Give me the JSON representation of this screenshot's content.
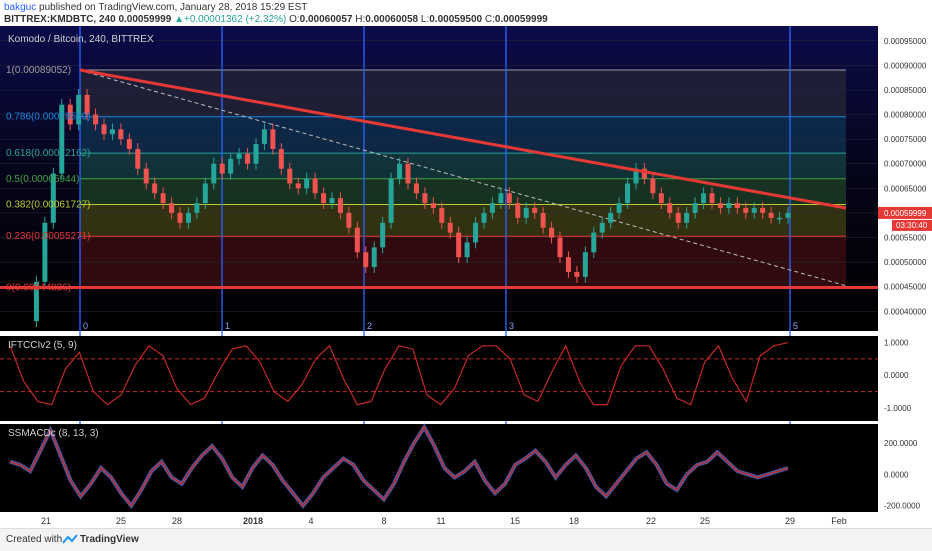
{
  "header": {
    "user": "bakguc",
    "published": "published on TradingView.com, January 28, 2018 15:29 EST",
    "symbol": "BITTREX:KMDBTC, 240",
    "last": "0.00059999",
    "change": "+0.00001362 (+2.32%)",
    "o_label": "O:",
    "o": "0.00060057",
    "h_label": "H:",
    "h": "0.00060058",
    "l_label": "L:",
    "l": "0.00059500",
    "c_label": "C:",
    "c": "0.00059999"
  },
  "footer": {
    "created": "Created with",
    "brand": "TradingView"
  },
  "colors": {
    "up": "#26a69a",
    "down": "#ef5350",
    "trend": "#e53935",
    "vline": "#2962ff",
    "ind": "#c62828",
    "macd_fill": "#5c6bc0",
    "panel_bg": "#000000"
  },
  "chart_data": [
    {
      "type": "candlestick",
      "title": "Komodo / Bitcoin, 240, BITTREX",
      "ylim": [
        0.00036,
        0.00098
      ],
      "y_ticks": [
        "0.00095000",
        "0.00090000",
        "0.00085000",
        "0.00080000",
        "0.00075000",
        "0.00070000",
        "0.00065000",
        "0.00060000",
        "0.00055000",
        "0.00050000",
        "0.00045000",
        "0.00040000"
      ],
      "last_price_label": "0.00059999",
      "countdown_label": "03:30:40",
      "fib_levels": [
        {
          "label": "1(0.00089052)",
          "value": 0.00089052,
          "color": "#9e9e9e"
        },
        {
          "label": "0.786(0.00079559)",
          "value": 0.00079559,
          "color": "#1e88e5"
        },
        {
          "label": "0.618(0.00072162)",
          "value": 0.00072162,
          "color": "#26a69a"
        },
        {
          "label": "0.5(0.00066944)",
          "value": 0.00066944,
          "color": "#43a047"
        },
        {
          "label": "0.382(0.00061727)",
          "value": 0.00061727,
          "color": "#c0ca33"
        },
        {
          "label": "0.236(0.00055271)",
          "value": 0.00055271,
          "color": "#e53935"
        },
        {
          "label": "0(0.00044836)",
          "value": 0.00044836,
          "color": "#e53935"
        }
      ],
      "vertical_markers": [
        "0",
        "1",
        "2",
        "3",
        "5"
      ],
      "trendline_from": 0.00089052,
      "trendline_to": 0.00061,
      "dashed_line_from": 0.00089,
      "dashed_line_to": 0.000452,
      "support": 0.00044836,
      "closes": [
        0.00038,
        0.00046,
        0.00058,
        0.00068,
        0.00082,
        0.00078,
        0.00084,
        0.0008,
        0.00078,
        0.00076,
        0.00077,
        0.00075,
        0.00073,
        0.00069,
        0.00066,
        0.00064,
        0.00062,
        0.0006,
        0.00058,
        0.0006,
        0.00062,
        0.00066,
        0.0007,
        0.00068,
        0.00071,
        0.00072,
        0.0007,
        0.00074,
        0.00077,
        0.00073,
        0.00069,
        0.00066,
        0.00065,
        0.00067,
        0.00064,
        0.00062,
        0.00063,
        0.0006,
        0.00057,
        0.00052,
        0.00049,
        0.00053,
        0.00058,
        0.00067,
        0.0007,
        0.00066,
        0.00064,
        0.00062,
        0.00061,
        0.00058,
        0.00056,
        0.00051,
        0.00054,
        0.00058,
        0.0006,
        0.00062,
        0.00064,
        0.00062,
        0.00059,
        0.00061,
        0.0006,
        0.00057,
        0.00055,
        0.00051,
        0.00048,
        0.00047,
        0.00052,
        0.00056,
        0.00058,
        0.0006,
        0.00062,
        0.00066,
        0.00069,
        0.00067,
        0.00064,
        0.00062,
        0.0006,
        0.00058,
        0.0006,
        0.00062,
        0.00064,
        0.00062,
        0.00061,
        0.00062,
        0.00061,
        0.0006,
        0.00061,
        0.0006,
        0.00059,
        0.00059,
        0.0006
      ],
      "x_ticks": [
        "21",
        "25",
        "28",
        "2018",
        "4",
        "8",
        "11",
        "15",
        "18",
        "22",
        "25",
        "29",
        "Feb"
      ]
    },
    {
      "type": "line",
      "title": "IFTCCIv2 (5, 9)",
      "ylim": [
        -1.4,
        1.2
      ],
      "y_ticks": [
        "1.0000",
        "0.0000",
        "-1.0000"
      ],
      "levels": [
        0.5,
        -0.5
      ],
      "values": [
        0.9,
        -0.2,
        -0.8,
        -0.9,
        0.2,
        0.7,
        -0.5,
        -0.9,
        -0.6,
        0.3,
        0.9,
        0.6,
        -0.4,
        -0.9,
        -0.7,
        0.1,
        0.8,
        0.9,
        0.4,
        -0.5,
        -0.8,
        -0.3,
        0.5,
        0.9,
        -0.1,
        -0.9,
        -0.8,
        0.2,
        0.9,
        0.8,
        -0.6,
        -0.9,
        -0.4,
        0.6,
        0.9,
        0.9,
        0.5,
        -0.6,
        -0.8,
        0.1,
        0.9,
        -0.2,
        -0.9,
        -0.9,
        0.3,
        0.9,
        0.9,
        0.2,
        -0.7,
        -0.9,
        0.4,
        0.9,
        -0.1,
        -0.8,
        0.6,
        0.9,
        1.0
      ]
    },
    {
      "type": "area",
      "title": "SSMACDc (8, 13, 3)",
      "ylim": [
        -240,
        320
      ],
      "y_ticks": [
        "200.0000",
        "0.0000",
        "-200.0000"
      ],
      "values": [
        80,
        60,
        20,
        150,
        280,
        120,
        -40,
        -140,
        -60,
        40,
        -20,
        -120,
        -200,
        -100,
        20,
        80,
        -20,
        -60,
        40,
        120,
        180,
        100,
        -20,
        -80,
        40,
        120,
        60,
        -40,
        -120,
        -200,
        -120,
        -20,
        40,
        100,
        60,
        -40,
        -100,
        -160,
        -60,
        80,
        200,
        300,
        180,
        40,
        -20,
        20,
        80,
        -40,
        -120,
        -60,
        60,
        100,
        150,
        80,
        -20,
        60,
        120,
        40,
        -80,
        -140,
        -60,
        20,
        100,
        140,
        60,
        -60,
        -100,
        0,
        60,
        80,
        140,
        80,
        20,
        0,
        -20,
        0,
        20,
        40
      ]
    }
  ]
}
